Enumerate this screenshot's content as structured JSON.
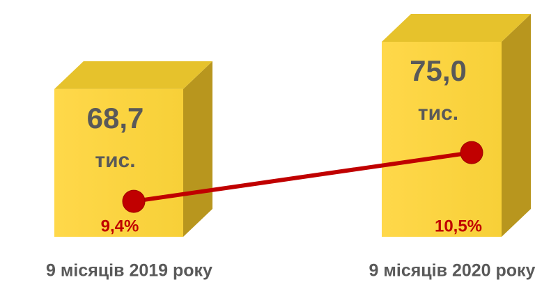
{
  "chart_data": {
    "type": "bar",
    "categories": [
      "9 місяців 2019 року",
      "9 місяців 2020 року"
    ],
    "series": [
      {
        "color": "#FFD84A",
        "values": [
          68.7,
          75.0
        ],
        "value_labels": [
          "68,7",
          "75,0"
        ],
        "unit": "тис."
      },
      {
        "type": "line",
        "axis": "y2",
        "color": "#C00000",
        "values": [
          9.4,
          10.5
        ],
        "value_labels": [
          "9,4%",
          "10,5%"
        ]
      }
    ],
    "ylim": [
      49,
      75
    ],
    "y2lim": [
      8.6,
      13
    ]
  }
}
